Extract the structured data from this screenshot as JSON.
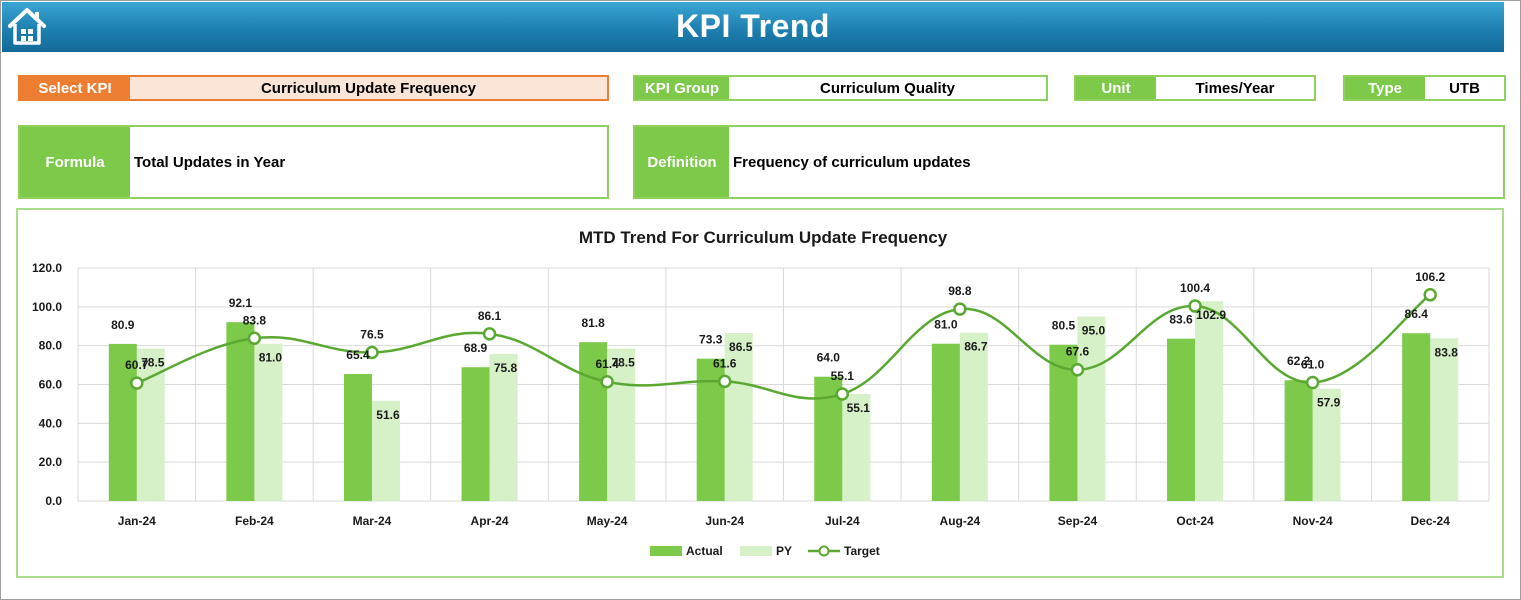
{
  "header": {
    "title": "KPI Trend"
  },
  "controls": {
    "select_kpi_label": "Select KPI",
    "select_kpi_value": "Curriculum Update Frequency",
    "kpi_group_label": "KPI Group",
    "kpi_group_value": "Curriculum Quality",
    "unit_label": "Unit",
    "unit_value": "Times/Year",
    "type_label": "Type",
    "type_value": "UTB",
    "formula_label": "Formula",
    "formula_value": "Total Updates in Year",
    "definition_label": "Definition",
    "definition_value": "Frequency of curriculum updates"
  },
  "colors": {
    "header": "#1e7fb0",
    "select_kpi": "#ed7d31",
    "label_green": "#7dc94a",
    "actual": "#7dc94a",
    "py": "#d6f0c8",
    "target": "#5aa832"
  },
  "chart_data": {
    "type": "bar",
    "title": "MTD Trend For Curriculum Update Frequency",
    "categories": [
      "Jan-24",
      "Feb-24",
      "Mar-24",
      "Apr-24",
      "May-24",
      "Jun-24",
      "Jul-24",
      "Aug-24",
      "Sep-24",
      "Oct-24",
      "Nov-24",
      "Dec-24"
    ],
    "y_ticks": [
      "0.0",
      "20.0",
      "40.0",
      "60.0",
      "80.0",
      "100.0",
      "120.0"
    ],
    "ylim": [
      0,
      120
    ],
    "grid": true,
    "legend_position": "bottom",
    "series": [
      {
        "name": "Actual",
        "type": "bar",
        "values": [
          80.9,
          92.1,
          65.4,
          68.9,
          81.8,
          73.3,
          64.0,
          81.0,
          80.5,
          83.6,
          62.2,
          86.4
        ]
      },
      {
        "name": "PY",
        "type": "bar",
        "values": [
          78.5,
          81.0,
          51.6,
          75.8,
          78.5,
          86.5,
          55.1,
          86.7,
          95.0,
          102.9,
          57.9,
          83.8
        ]
      },
      {
        "name": "Target",
        "type": "line",
        "values": [
          60.7,
          83.8,
          76.5,
          86.1,
          61.4,
          61.6,
          55.1,
          98.8,
          67.6,
          100.4,
          61.0,
          106.2
        ]
      }
    ]
  }
}
